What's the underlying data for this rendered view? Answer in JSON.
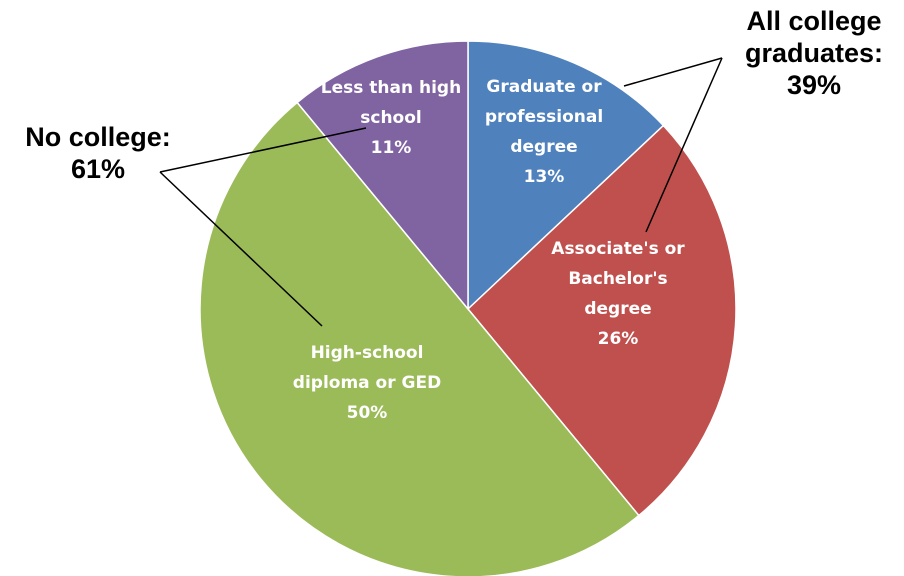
{
  "chart_data": {
    "type": "pie",
    "title": "",
    "slices": [
      {
        "label_lines": [
          "Graduate or",
          "professional",
          "degree"
        ],
        "value": 13,
        "value_label": "13%",
        "color": "#4F81BD"
      },
      {
        "label_lines": [
          "Associate's or",
          "Bachelor's",
          "degree"
        ],
        "value": 26,
        "value_label": "26%",
        "color": "#C0504D"
      },
      {
        "label_lines": [
          "High-school",
          "diploma or GED"
        ],
        "value": 50,
        "value_label": "50%",
        "color": "#9BBB59"
      },
      {
        "label_lines": [
          "Less than high",
          "school"
        ],
        "value": 11,
        "value_label": "11%",
        "color": "#8064A2"
      }
    ],
    "start_angle_deg": 0,
    "direction": "clockwise",
    "group_annotations": [
      {
        "lines": [
          "All college",
          "graduates:",
          "39%"
        ],
        "slices": [
          0,
          1
        ]
      },
      {
        "lines": [
          "No college:",
          "61%"
        ],
        "slices": [
          2,
          3
        ]
      }
    ]
  }
}
